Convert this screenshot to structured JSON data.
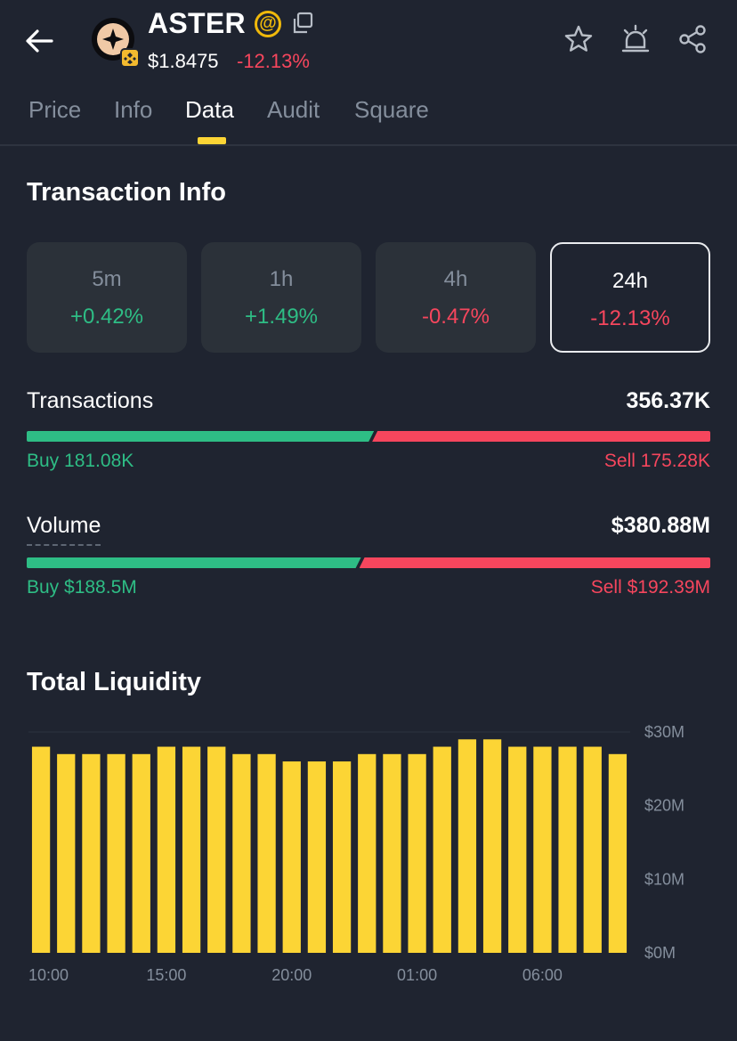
{
  "header": {
    "token": "ASTER",
    "at_symbol": "@",
    "price": "$1.8475",
    "change": "-12.13%"
  },
  "tabs": [
    "Price",
    "Info",
    "Data",
    "Audit",
    "Square"
  ],
  "active_tab": "Data",
  "transaction_info": {
    "title": "Transaction Info",
    "cards": [
      {
        "label": "5m",
        "value": "+0.42%",
        "dir": "up"
      },
      {
        "label": "1h",
        "value": "+1.49%",
        "dir": "up"
      },
      {
        "label": "4h",
        "value": "-0.47%",
        "dir": "down"
      },
      {
        "label": "24h",
        "value": "-12.13%",
        "dir": "down"
      }
    ],
    "selected": "24h",
    "transactions": {
      "label": "Transactions",
      "total": "356.37K",
      "buy": "Buy 181.08K",
      "sell": "Sell 175.28K",
      "buy_ratio": 0.508
    },
    "volume": {
      "label": "Volume",
      "total": "$380.88M",
      "buy": "Buy $188.5M",
      "sell": "Sell $192.39M",
      "buy_ratio": 0.489
    }
  },
  "liquidity": {
    "title": "Total Liquidity"
  },
  "colors": {
    "accent": "#fcd535",
    "buy": "#2ebd85",
    "sell": "#f6465d",
    "bar": "#fcd535"
  },
  "chart_data": {
    "type": "bar",
    "title": "Total Liquidity",
    "y_unit": "$M",
    "ylim": [
      0,
      30
    ],
    "y_ticks": [
      "$0M",
      "$10M",
      "$20M",
      "$30M"
    ],
    "y_tick_values": [
      0,
      10,
      20,
      30
    ],
    "x_tick_labels": [
      "10:00",
      "15:00",
      "20:00",
      "01:00",
      "06:00"
    ],
    "x_tick_indices": [
      0,
      5,
      10,
      15,
      20
    ],
    "values": [
      28,
      27,
      27,
      27,
      27,
      28,
      28,
      28,
      27,
      27,
      26,
      26,
      26,
      27,
      27,
      27,
      28,
      29,
      29,
      28,
      28,
      28,
      28,
      27
    ]
  }
}
